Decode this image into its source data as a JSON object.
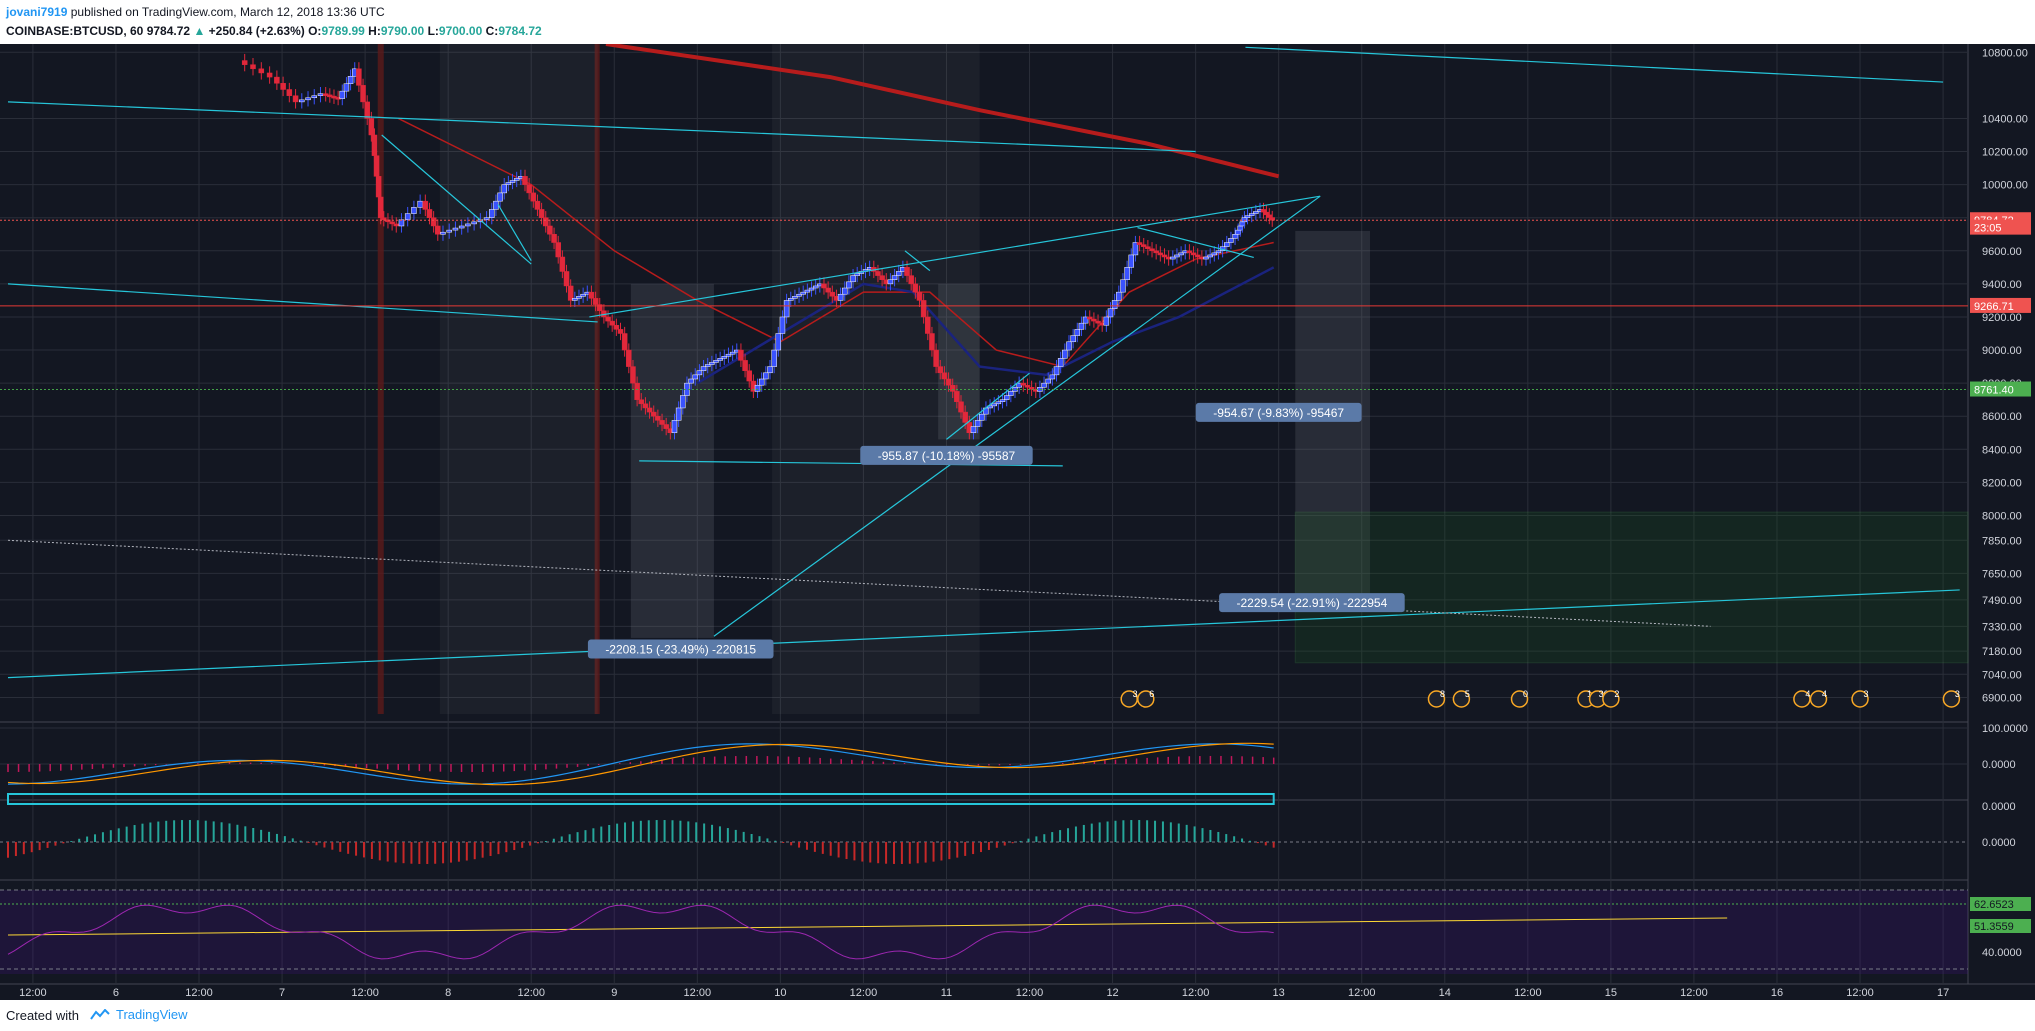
{
  "header": {
    "author": "jovani7919",
    "published_text": "published on TradingView.com, March 12, 2018 13:36 UTC",
    "symbol": "COINBASE:BTCUSD, 60",
    "last": "9784.72",
    "change": "+250.84 (+2.63%)",
    "o_label": "O:",
    "o": "9789.99",
    "h_label": "H:",
    "h": "9790.00",
    "l_label": "L:",
    "l": "9700.00",
    "c_label": "C:",
    "c": "9784.72"
  },
  "footer": {
    "created_with": "Created with",
    "brand": "TradingView"
  },
  "colors": {
    "background": "#131722",
    "grid": "#2a2e39",
    "up": "#3a52ff",
    "down": "#e2283b",
    "trend": "#26c6da",
    "ma_red": "#b71c1c",
    "ma_blue": "#1a237e",
    "rsi": "#9c27b0",
    "price_tag": "#ef5350",
    "support_tag": "#4caf50"
  },
  "chart_data": [
    {
      "type": "candlestick",
      "pane": "price",
      "symbol": "COINBASE:BTCUSD",
      "interval": "60",
      "ylim": [
        6800,
        10850
      ],
      "y_ticks": [
        6900,
        7040,
        7180,
        7330,
        7490,
        7650,
        7850,
        8000,
        8200,
        8400,
        8600,
        8800,
        9000,
        9200,
        9400,
        9600,
        9800,
        10000,
        10200,
        10400,
        10800
      ],
      "x_ticks": [
        "12:00",
        "6",
        "12:00",
        "7",
        "12:00",
        "8",
        "12:00",
        "9",
        "12:00",
        "10",
        "12:00",
        "11",
        "12:00",
        "12",
        "12:00",
        "13",
        "12:00",
        "14",
        "12:00",
        "15",
        "12:00",
        "16",
        "12:00",
        "17"
      ],
      "x_tick_days": [
        5.5,
        6,
        6.5,
        7,
        7.5,
        8,
        8.5,
        9,
        9.5,
        10,
        10.5,
        11,
        11.5,
        12,
        12.5,
        13,
        13.5,
        14,
        14.5,
        15,
        15.5,
        16,
        16.5,
        17
      ],
      "xlim": [
        5.35,
        17.15
      ],
      "close_path": [
        [
          6.75,
          10750
        ],
        [
          6.95,
          10650
        ],
        [
          7.1,
          10500
        ],
        [
          7.25,
          10550
        ],
        [
          7.35,
          10520
        ],
        [
          7.45,
          10700
        ],
        [
          7.55,
          10300
        ],
        [
          7.6,
          9800
        ],
        [
          7.7,
          9750
        ],
        [
          7.85,
          9900
        ],
        [
          7.95,
          9700
        ],
        [
          8.1,
          9750
        ],
        [
          8.25,
          9800
        ],
        [
          8.35,
          10000
        ],
        [
          8.45,
          10050
        ],
        [
          8.55,
          9850
        ],
        [
          8.65,
          9650
        ],
        [
          8.75,
          9300
        ],
        [
          8.85,
          9350
        ],
        [
          8.95,
          9200
        ],
        [
          9.05,
          9100
        ],
        [
          9.15,
          8700
        ],
        [
          9.25,
          8600
        ],
        [
          9.35,
          8500
        ],
        [
          9.45,
          8800
        ],
        [
          9.55,
          8900
        ],
        [
          9.65,
          8950
        ],
        [
          9.75,
          9000
        ],
        [
          9.85,
          8750
        ],
        [
          9.95,
          8900
        ],
        [
          10.05,
          9300
        ],
        [
          10.15,
          9350
        ],
        [
          10.25,
          9400
        ],
        [
          10.35,
          9300
        ],
        [
          10.45,
          9450
        ],
        [
          10.55,
          9500
        ],
        [
          10.65,
          9400
        ],
        [
          10.75,
          9500
        ],
        [
          10.85,
          9300
        ],
        [
          10.95,
          8900
        ],
        [
          11.05,
          8750
        ],
        [
          11.15,
          8500
        ],
        [
          11.25,
          8650
        ],
        [
          11.35,
          8700
        ],
        [
          11.45,
          8800
        ],
        [
          11.55,
          8750
        ],
        [
          11.65,
          8850
        ],
        [
          11.75,
          9050
        ],
        [
          11.85,
          9200
        ],
        [
          11.95,
          9150
        ],
        [
          12.05,
          9350
        ],
        [
          12.15,
          9650
        ],
        [
          12.25,
          9600
        ],
        [
          12.35,
          9550
        ],
        [
          12.45,
          9600
        ],
        [
          12.55,
          9550
        ],
        [
          12.65,
          9600
        ],
        [
          12.75,
          9700
        ],
        [
          12.8,
          9800
        ],
        [
          12.9,
          9850
        ],
        [
          12.97,
          9784.72
        ]
      ],
      "price_labels": [
        {
          "value": 9784.72,
          "text": "9784.72",
          "kind": "last"
        },
        {
          "value": 9740,
          "text": "23:05",
          "kind": "countdown"
        },
        {
          "value": 9266.71,
          "text": "9266.71",
          "kind": "level"
        },
        {
          "value": 8761.4,
          "text": "8761.40",
          "kind": "support"
        }
      ],
      "measurements": [
        {
          "text": "-2208.15 (-23.49%) -220815"
        },
        {
          "text": "-955.87 (-10.18%) -95587"
        },
        {
          "text": "-954.67 (-9.83%) -95467"
        },
        {
          "text": "-2229.54 (-22.91%) -222954"
        }
      ],
      "event_markers": [
        "3",
        "6",
        "8",
        "5",
        "0",
        "14",
        "36",
        "2",
        "4",
        "4",
        "3",
        "3"
      ]
    },
    {
      "type": "line",
      "pane": "macd",
      "y_ticks": [
        100.0,
        0.0
      ],
      "y_tick_labels": [
        "100.0000",
        "0.0000"
      ]
    },
    {
      "type": "bar",
      "pane": "histogram",
      "bottom_label": "0.0000",
      "y_tick_labels": [
        "0.0000"
      ]
    },
    {
      "type": "line",
      "pane": "rsi",
      "y_tick_labels": [
        "40.0000"
      ],
      "tags": [
        {
          "text": "62.6523"
        },
        {
          "text": "51.3559"
        }
      ]
    }
  ]
}
